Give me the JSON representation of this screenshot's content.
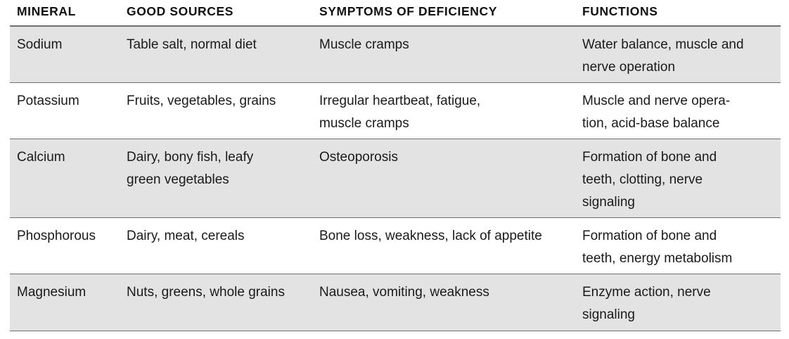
{
  "table": {
    "headers": [
      "MINERAL",
      "GOOD SOURCES",
      "SYMPTOMS OF DEFICIENCY",
      "FUNCTIONS"
    ],
    "rows": [
      {
        "mineral": [
          "Sodium"
        ],
        "sources": [
          "Table salt, normal diet"
        ],
        "symptoms": [
          "Muscle cramps"
        ],
        "functions": [
          "Water balance, muscle and",
          "nerve operation"
        ]
      },
      {
        "mineral": [
          "Potassium"
        ],
        "sources": [
          "Fruits, vegetables, grains"
        ],
        "symptoms": [
          "Irregular heartbeat, fatigue,",
          "muscle cramps"
        ],
        "functions": [
          "Muscle and nerve opera-",
          "tion, acid-base balance"
        ]
      },
      {
        "mineral": [
          "Calcium"
        ],
        "sources": [
          "Dairy, bony fish, leafy",
          "green vegetables"
        ],
        "symptoms": [
          "Osteoporosis"
        ],
        "functions": [
          "Formation of bone and",
          "teeth, clotting, nerve",
          "signaling"
        ]
      },
      {
        "mineral": [
          "Phosphorous"
        ],
        "sources": [
          "Dairy, meat, cereals"
        ],
        "symptoms": [
          "Bone loss, weakness, lack of appetite"
        ],
        "functions": [
          "Formation of bone and",
          "teeth, energy metabolism"
        ]
      },
      {
        "mineral": [
          "Magnesium"
        ],
        "sources": [
          "Nuts, greens, whole grains"
        ],
        "symptoms": [
          "Nausea, vomiting, weakness"
        ],
        "functions": [
          "Enzyme action, nerve",
          "signaling"
        ]
      }
    ]
  }
}
